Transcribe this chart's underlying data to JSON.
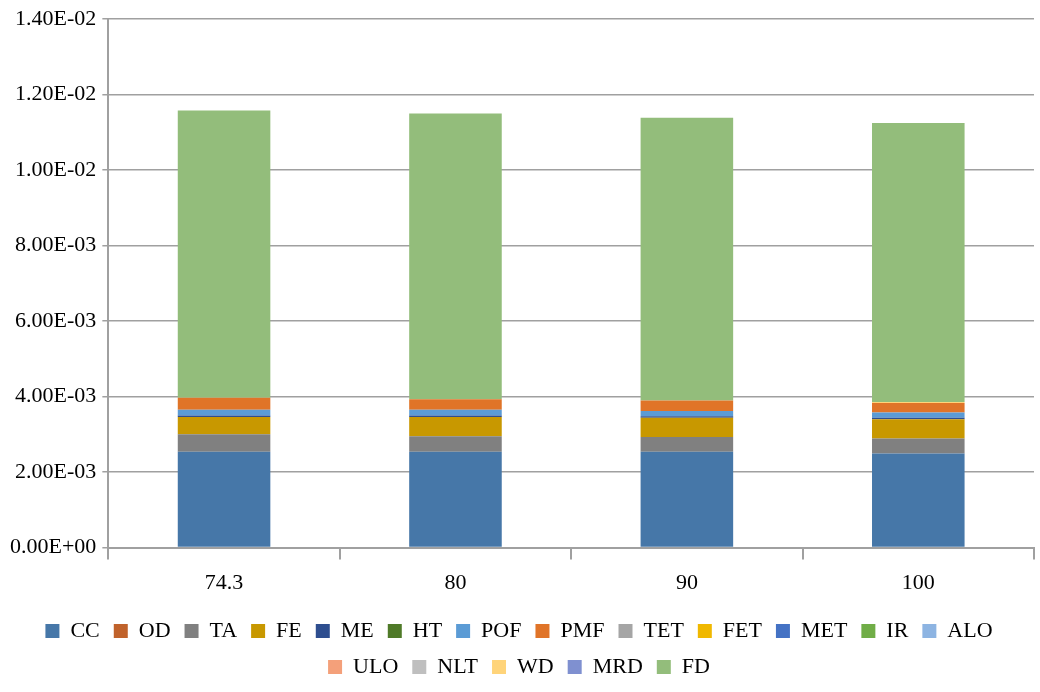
{
  "chart_data": {
    "type": "bar",
    "stacked": true,
    "categories": [
      "74.3",
      "80",
      "90",
      "100"
    ],
    "series": [
      {
        "name": "CC",
        "color": "#4677a8",
        "values": [
          0.00254,
          0.00254,
          0.00254,
          0.00249
        ]
      },
      {
        "name": "OD",
        "color": "#c0622b",
        "values": [
          0,
          0,
          0,
          0
        ]
      },
      {
        "name": "TA",
        "color": "#808080",
        "values": [
          0.00046,
          0.00041,
          0.00039,
          0.0004
        ]
      },
      {
        "name": "FE",
        "color": "#c89800",
        "values": [
          0.00046,
          0.00051,
          0.00051,
          0.00051
        ]
      },
      {
        "name": "ME",
        "color": "#2e4e8f",
        "values": [
          4e-05,
          4e-05,
          4e-05,
          4e-05
        ]
      },
      {
        "name": "HT",
        "color": "#4f7a28",
        "values": [
          0,
          0,
          0,
          0
        ]
      },
      {
        "name": "POF",
        "color": "#5b9bd5",
        "values": [
          0.00015,
          0.00015,
          0.00014,
          0.00014
        ]
      },
      {
        "name": "PMF",
        "color": "#e07428",
        "values": [
          0.00032,
          0.00028,
          0.00028,
          0.00025
        ]
      },
      {
        "name": "TET",
        "color": "#a5a5a5",
        "values": [
          0,
          0,
          0,
          0
        ]
      },
      {
        "name": "FET",
        "color": "#f0b800",
        "values": [
          0,
          0,
          0,
          0
        ]
      },
      {
        "name": "MET",
        "color": "#4472c4",
        "values": [
          0,
          0,
          0,
          0
        ]
      },
      {
        "name": "IR",
        "color": "#70ad47",
        "values": [
          0,
          0,
          0,
          0
        ]
      },
      {
        "name": "ALO",
        "color": "#8db4e2",
        "values": [
          0,
          0,
          0,
          0
        ]
      },
      {
        "name": "ULO",
        "color": "#f4a07a",
        "values": [
          0,
          0,
          0,
          0
        ]
      },
      {
        "name": "NLT",
        "color": "#bfbfbf",
        "values": [
          0,
          0,
          0,
          0
        ]
      },
      {
        "name": "WD",
        "color": "#ffd47a",
        "values": [
          0,
          0,
          0,
          3e-05
        ]
      },
      {
        "name": "MRD",
        "color": "#7f90d0",
        "values": [
          0,
          0,
          0,
          0
        ]
      },
      {
        "name": "FD",
        "color": "#93bd7b",
        "values": [
          0.00761,
          0.00757,
          0.00749,
          0.00739
        ]
      }
    ],
    "ylim": [
      0,
      0.014
    ],
    "yticks": [
      {
        "value": 0,
        "label": "0.00E+00"
      },
      {
        "value": 0.002,
        "label": "2.00E-03"
      },
      {
        "value": 0.004,
        "label": "4.00E-03"
      },
      {
        "value": 0.006,
        "label": "6.00E-03"
      },
      {
        "value": 0.008,
        "label": "8.00E-03"
      },
      {
        "value": 0.01,
        "label": "1.00E-02"
      },
      {
        "value": 0.012,
        "label": "1.20E-02"
      },
      {
        "value": 0.014,
        "label": "1.40E-02"
      }
    ],
    "grid": "y",
    "legend": "bottom"
  }
}
